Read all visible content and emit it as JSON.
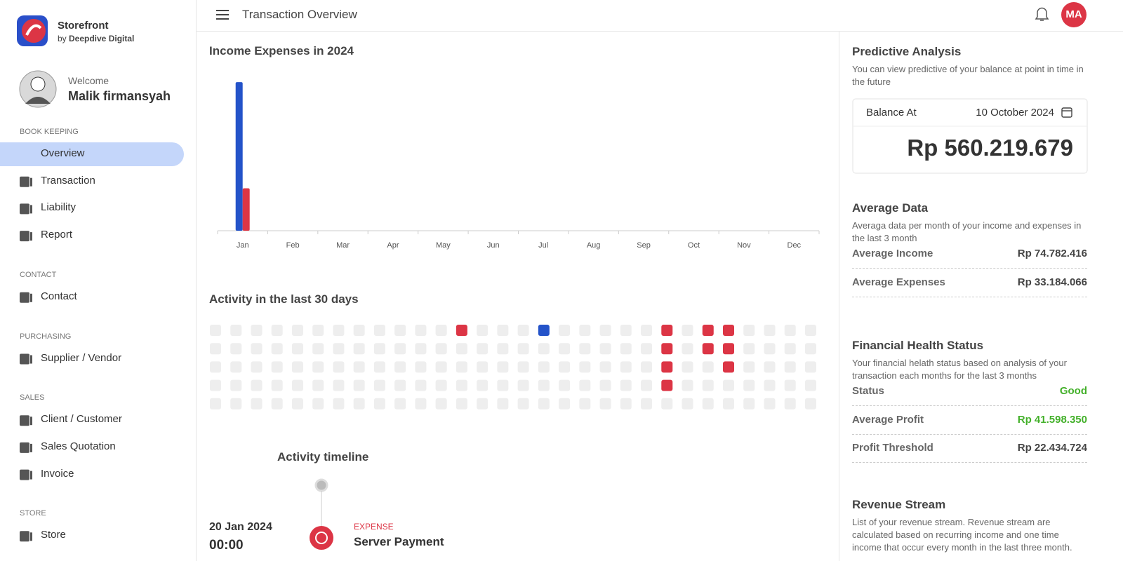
{
  "sidebar": {
    "brand": {
      "name": "Storefront",
      "by": "by",
      "company": "Deepdive Digital"
    },
    "user": {
      "welcome": "Welcome",
      "name": "Malik firmansyah"
    },
    "sections": [
      {
        "title": "BOOK KEEPING",
        "items": [
          {
            "label": "Overview",
            "active": true
          },
          {
            "label": "Transaction"
          },
          {
            "label": "Liability"
          },
          {
            "label": "Report"
          }
        ]
      },
      {
        "title": "CONTACT",
        "items": [
          {
            "label": "Contact"
          }
        ]
      },
      {
        "title": "PURCHASING",
        "items": [
          {
            "label": "Supplier / Vendor"
          }
        ]
      },
      {
        "title": "SALES",
        "items": [
          {
            "label": "Client / Customer"
          },
          {
            "label": "Sales Quotation"
          },
          {
            "label": "Invoice"
          }
        ]
      },
      {
        "title": "STORE",
        "items": [
          {
            "label": "Store"
          }
        ]
      }
    ]
  },
  "header": {
    "title": "Transaction Overview",
    "avatar": "MA"
  },
  "chart_data": {
    "type": "bar",
    "title": "Income Expenses in 2024",
    "categories": [
      "Jan",
      "Feb",
      "Mar",
      "Apr",
      "May",
      "Jun",
      "Jul",
      "Aug",
      "Sep",
      "Oct",
      "Nov",
      "Dec"
    ],
    "series": [
      {
        "color": "#2453c9",
        "values": [
          210,
          0,
          0,
          0,
          0,
          0,
          0,
          0,
          0,
          0,
          0,
          0
        ]
      },
      {
        "color": "#dc3545",
        "values": [
          60,
          0,
          0,
          0,
          0,
          0,
          0,
          0,
          0,
          0,
          0,
          0
        ]
      }
    ],
    "ylim": [
      0,
      230
    ]
  },
  "activity": {
    "title": "Activity in the last 30 days",
    "colors": [
      "#eeeeee",
      "#dc3545",
      "#2453c9"
    ],
    "cells": [
      [
        0,
        0,
        0,
        0,
        0,
        0,
        0,
        0,
        0,
        0,
        0,
        0,
        1,
        0,
        0,
        0,
        2,
        0,
        0,
        0,
        0,
        0,
        1,
        0,
        1,
        1,
        0,
        0,
        0,
        0
      ],
      [
        0,
        0,
        0,
        0,
        0,
        0,
        0,
        0,
        0,
        0,
        0,
        0,
        0,
        0,
        0,
        0,
        0,
        0,
        0,
        0,
        0,
        0,
        1,
        0,
        1,
        1,
        0,
        0,
        0,
        0
      ],
      [
        0,
        0,
        0,
        0,
        0,
        0,
        0,
        0,
        0,
        0,
        0,
        0,
        0,
        0,
        0,
        0,
        0,
        0,
        0,
        0,
        0,
        0,
        1,
        0,
        0,
        1,
        0,
        0,
        0,
        0
      ],
      [
        0,
        0,
        0,
        0,
        0,
        0,
        0,
        0,
        0,
        0,
        0,
        0,
        0,
        0,
        0,
        0,
        0,
        0,
        0,
        0,
        0,
        0,
        1,
        0,
        0,
        0,
        0,
        0,
        0,
        0
      ],
      [
        0,
        0,
        0,
        0,
        0,
        0,
        0,
        0,
        0,
        0,
        0,
        0,
        0,
        0,
        0,
        0,
        0,
        0,
        0,
        0,
        0,
        0,
        0,
        0,
        0,
        0,
        0,
        0,
        0,
        0
      ]
    ]
  },
  "timeline": {
    "title": "Activity timeline",
    "events": [
      {
        "date": "20 Jan 2024",
        "time": "00:00",
        "kind": "EXPENSE",
        "label": "Server Payment"
      }
    ]
  },
  "panel": {
    "predictive": {
      "title": "Predictive Analysis",
      "description": "You can view predictive of your balance at point in time in the future",
      "balance_label": "Balance At",
      "date": "10 October 2024",
      "amount": "Rp 560.219.679"
    },
    "average": {
      "title": "Average Data",
      "description": "Averaga data per month of your income and expenses in the last 3 month",
      "rows": [
        {
          "label": "Average Income",
          "value": "Rp 74.782.416"
        },
        {
          "label": "Average Expenses",
          "value": "Rp 33.184.066"
        }
      ]
    },
    "health": {
      "title": "Financial Health Status",
      "description": "Your financial helath status based on analysis of your transaction each months for the last 3 months",
      "rows": [
        {
          "label": "Status",
          "value": "Good",
          "color": "#43b02a"
        },
        {
          "label": "Average Profit",
          "value": "Rp 41.598.350",
          "color": "#43b02a"
        },
        {
          "label": "Profit Threshold",
          "value": "Rp 22.434.724"
        }
      ]
    },
    "revenue": {
      "title": "Revenue Stream",
      "description": "List of your revenue stream. Revenue stream are calculated based on recurring income and one time income that occur every month in the last three month."
    }
  }
}
